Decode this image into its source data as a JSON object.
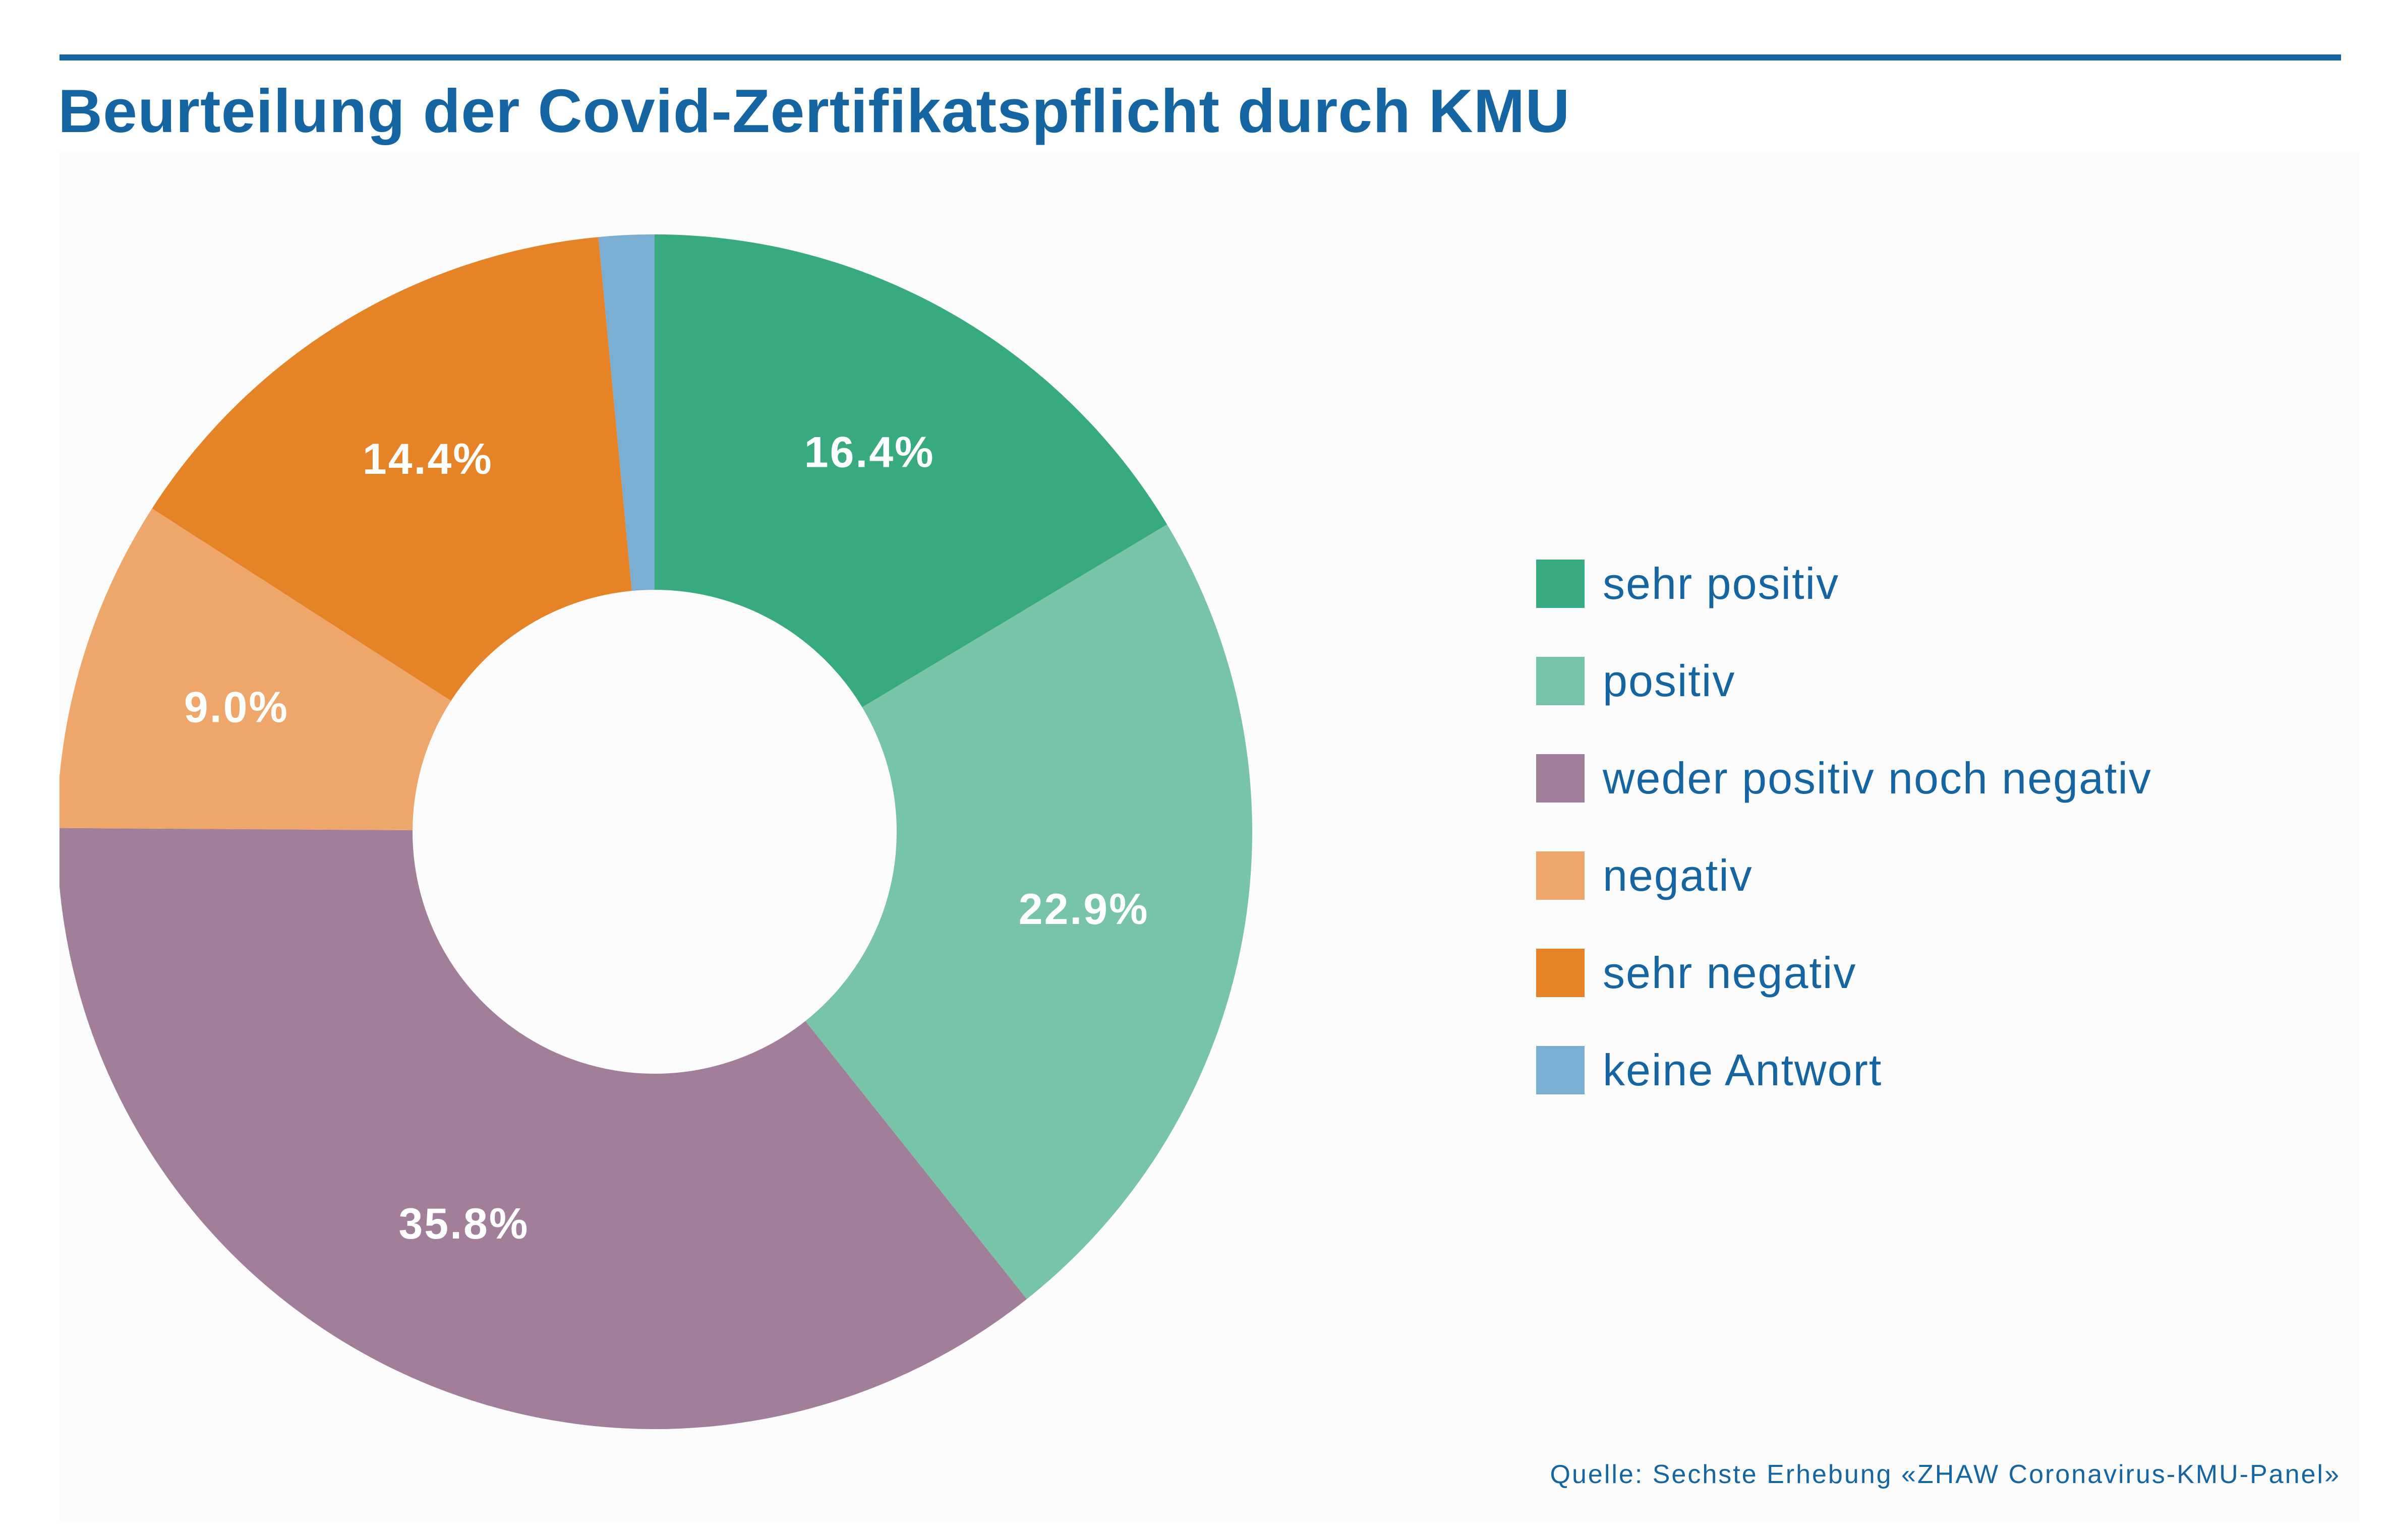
{
  "title": "Beurteilung der Covid-Zertifikatspflicht durch KMU",
  "source": "Quelle: Sechste Erhebung «ZHAW Coronavirus-KMU-Panel»",
  "chart_data": {
    "type": "pie",
    "variant": "donut",
    "title": "Beurteilung der Covid-Zertifikatspflicht durch KMU",
    "unit": "%",
    "legend_position": "right",
    "start_angle": "12 o'clock",
    "direction": "clockwise",
    "slices": [
      {
        "label": "sehr positiv",
        "value": 16.4,
        "display": "16.4%",
        "color": "#38aa7f"
      },
      {
        "label": "positiv",
        "value": 22.9,
        "display": "22.9%",
        "color": "#78c4a8"
      },
      {
        "label": "weder positiv noch negativ",
        "value": 35.8,
        "display": "35.8%",
        "color": "#a17f9a"
      },
      {
        "label": "negativ",
        "value": 9.0,
        "display": "9.0%",
        "color": "#efa66a"
      },
      {
        "label": "sehr negativ",
        "value": 14.4,
        "display": "14.4%",
        "color": "#e78327"
      },
      {
        "label": "keine Antwort",
        "value": 1.5,
        "display": "",
        "color": "#7aaed2"
      }
    ]
  }
}
